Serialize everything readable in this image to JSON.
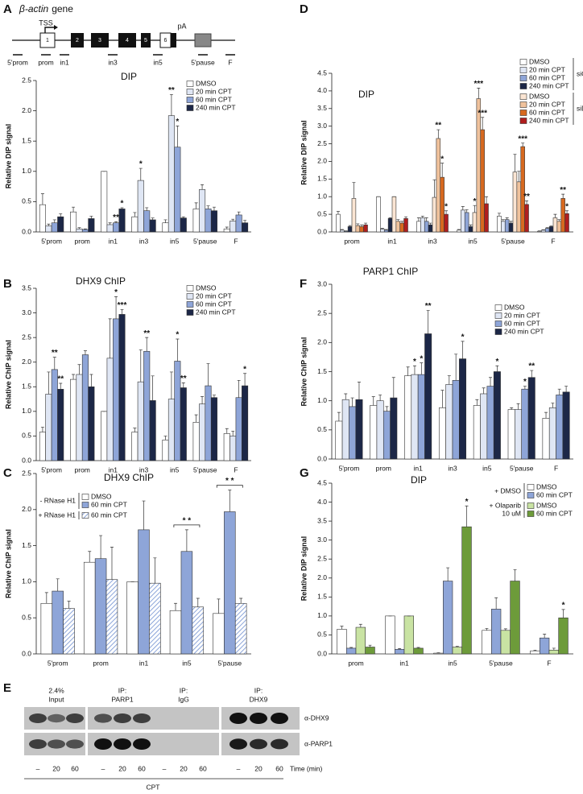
{
  "panels": [
    "A",
    "B",
    "C",
    "D",
    "E",
    "F",
    "G"
  ],
  "gene_diagram": {
    "gene": "β-actin",
    "label": "gene",
    "tss": "TSS",
    "pa": "pA",
    "exons": [
      "1",
      "2",
      "3",
      "4",
      "5",
      "6"
    ],
    "regions": [
      "5'prom",
      "prom",
      "in1",
      "in3",
      "in5",
      "5'pause",
      "F"
    ]
  },
  "chart_data": [
    {
      "type": "bar",
      "title": "DIP",
      "ylabel": "Relative DIP signal",
      "categories": [
        "5'prom",
        "prom",
        "in1",
        "in3",
        "in5",
        "5'pause",
        "F"
      ],
      "ylim": [
        0,
        2.5
      ],
      "yticks": [
        {
          "value": 0,
          "label": "0.0"
        },
        0.5,
        {
          "value": 1,
          "label": "1.0"
        },
        1.5,
        {
          "value": 2,
          "label": "2.0"
        },
        2.5
      ],
      "series": [
        {
          "name": "DMSO",
          "color": "#ffffff",
          "values": [
            0.45,
            0.33,
            1.0,
            0.25,
            0.15,
            0.38,
            0.05
          ],
          "errors": [
            0.18,
            0.08,
            0,
            0.07,
            0.05,
            0.1,
            0.03
          ]
        },
        {
          "name": "20 min CPT",
          "color": "#dfe6f4",
          "values": [
            0.1,
            0.05,
            0.12,
            0.85,
            1.92,
            0.7,
            0.18
          ],
          "errors": [
            0.03,
            0.02,
            0.03,
            0.2,
            0.35,
            0.08,
            0.03
          ],
          "significance": [
            null,
            null,
            null,
            "*",
            "**",
            null,
            null
          ]
        },
        {
          "name": "60 min CPT",
          "color": "#8ea5d8",
          "values": [
            0.15,
            0.04,
            0.15,
            0.35,
            1.4,
            0.38,
            0.28
          ],
          "errors": [
            0.05,
            0.01,
            0.02,
            0.05,
            0.35,
            0.05,
            0.05
          ],
          "significance": [
            null,
            null,
            "**",
            null,
            "*",
            null,
            null
          ]
        },
        {
          "name": "240 min CPT",
          "color": "#1c2747",
          "values": [
            0.25,
            0.22,
            0.38,
            0.2,
            0.23,
            0.35,
            0.15
          ],
          "errors": [
            0.05,
            0.04,
            0.02,
            0.03,
            0.02,
            0.06,
            0.04
          ],
          "significance": [
            null,
            null,
            "*",
            null,
            null,
            null,
            null
          ]
        }
      ]
    },
    {
      "type": "bar",
      "title": "DHX9 ChIP",
      "ylabel": "Relative ChIP signal",
      "categories": [
        "5'prom",
        "prom",
        "in1",
        "in3",
        "in5",
        "5'pause",
        "F"
      ],
      "ylim": [
        0,
        3.5
      ],
      "yticks": [
        {
          "value": 0,
          "label": "0.0"
        },
        0.5,
        {
          "value": 1,
          "label": "1.0"
        },
        1.5,
        {
          "value": 2,
          "label": "2.0"
        },
        2.5,
        {
          "value": 3,
          "label": "3.0"
        },
        3.5
      ],
      "series": [
        {
          "name": "DMSO",
          "color": "#ffffff",
          "values": [
            0.58,
            1.65,
            1.0,
            0.58,
            0.42,
            0.78,
            0.55
          ],
          "errors": [
            0.1,
            0.1,
            0,
            0.08,
            0.08,
            0.15,
            0.1
          ]
        },
        {
          "name": "20 min CPT",
          "color": "#dfe6f4",
          "values": [
            1.35,
            1.75,
            2.08,
            1.6,
            1.25,
            1.15,
            0.5
          ],
          "errors": [
            0.45,
            0.2,
            0.8,
            0.65,
            0.55,
            0.15,
            0.1
          ]
        },
        {
          "name": "60 min CPT",
          "color": "#8ea5d8",
          "values": [
            1.85,
            2.15,
            2.88,
            2.22,
            2.02,
            1.52,
            1.28
          ],
          "errors": [
            0.25,
            0.08,
            0.45,
            0.28,
            0.45,
            0.45,
            0.35
          ],
          "significance": [
            "**",
            null,
            "*",
            "**",
            "*",
            null,
            null
          ]
        },
        {
          "name": "240 min CPT",
          "color": "#1c2747",
          "values": [
            1.45,
            1.5,
            2.97,
            1.22,
            1.48,
            1.28,
            1.52
          ],
          "errors": [
            0.12,
            0.25,
            0.1,
            0.5,
            0.1,
            0.05,
            0.25
          ],
          "significance": [
            "**",
            null,
            "***",
            null,
            "**",
            null,
            "*"
          ]
        }
      ]
    },
    {
      "type": "bar",
      "title": "DHX9 ChIP",
      "ylabel": "Relative ChIP signal",
      "categories": [
        "5'prom",
        "prom",
        "in1",
        "in5",
        "5'pause"
      ],
      "ylim": [
        0,
        2.5
      ],
      "yticks": [
        {
          "value": 0,
          "label": "0.0"
        },
        0.5,
        {
          "value": 1,
          "label": "1.0"
        },
        1.5,
        {
          "value": 2,
          "label": "2.0"
        },
        2.5
      ],
      "brackets": [
        null,
        null,
        null,
        "* *",
        "* *"
      ],
      "series_groups": [
        {
          "label": [
            "- RNase H1"
          ],
          "series": [
            {
              "name": "DMSO",
              "color": "#ffffff",
              "values": [
                0.7,
                1.27,
                1.0,
                0.6,
                0.56
              ],
              "errors": [
                0.15,
                0.15,
                0,
                0.1,
                0.2
              ]
            },
            {
              "name": "60 min CPT",
              "color": "#8ea5d8",
              "values": [
                0.87,
                1.32,
                1.72,
                1.42,
                1.97
              ],
              "errors": [
                0.17,
                0.32,
                0.4,
                0.3,
                0.3
              ]
            }
          ]
        },
        {
          "label": [
            "+ RNase H1"
          ],
          "series": [
            {
              "name": "60 min CPT",
              "color": "#6f8fd0",
              "pattern": "hatch",
              "values": [
                0.63,
                1.03,
                0.98,
                0.65,
                0.7
              ],
              "errors": [
                0.1,
                0.45,
                0.35,
                0.12,
                0.07
              ]
            }
          ]
        }
      ]
    },
    {
      "type": "bar",
      "title": "DIP",
      "ylabel": "Relative DIP signal",
      "categories": [
        "prom",
        "in1",
        "in3",
        "in5",
        "5'pause",
        "F"
      ],
      "ylim": [
        0,
        4.5
      ],
      "yticks": [
        {
          "value": 0,
          "label": "0.0"
        },
        0.5,
        {
          "value": 1,
          "label": "1.0"
        },
        1.5,
        {
          "value": 2,
          "label": "2.0"
        },
        2.5,
        {
          "value": 3,
          "label": "3.0"
        },
        3.5,
        {
          "value": 4,
          "label": "4.0"
        },
        4.5
      ],
      "series_groups": [
        {
          "label": [
            "siCtrl"
          ],
          "series": [
            {
              "name": "DMSO",
              "color": "#ffffff",
              "values": [
                0.5,
                1.0,
                0.3,
                0.05,
                0.45,
                0.02
              ],
              "errors": [
                0.08,
                0,
                0.1,
                0.02,
                0.08,
                0.01
              ]
            },
            {
              "name": "20 min CPT",
              "color": "#dfe6f4",
              "values": [
                0.05,
                0.08,
                0.4,
                0.62,
                0.3,
                0.05
              ],
              "errors": [
                0.02,
                0.02,
                0.05,
                0.1,
                0.05,
                0.01
              ]
            },
            {
              "name": "60 min CPT",
              "color": "#8ea5d8",
              "values": [
                0.02,
                0.05,
                0.3,
                0.55,
                0.35,
                0.1
              ],
              "errors": [
                0.01,
                0.02,
                0.1,
                0.08,
                0.05,
                0.02
              ]
            },
            {
              "name": "240 min CPT",
              "color": "#1c2747",
              "values": [
                0.15,
                0.38,
                0.2,
                0.15,
                0.25,
                0.15
              ],
              "errors": [
                0.03,
                0.02,
                0.05,
                0.05,
                0.05,
                0.02
              ]
            }
          ]
        },
        {
          "label": [
            "siDHX9"
          ],
          "series": [
            {
              "name": "DMSO",
              "color": "#fbe5d3",
              "values": [
                0.95,
                1.0,
                0.98,
                0.55,
                1.7,
                0.4
              ],
              "errors": [
                0.45,
                0,
                0.5,
                0.2,
                0.5,
                0.1
              ],
              "significance": [
                null,
                null,
                null,
                "*",
                null,
                null
              ]
            },
            {
              "name": "20 min CPT",
              "color": "#f0c29c",
              "values": [
                0.18,
                0.3,
                2.65,
                3.78,
                1.42,
                0.3
              ],
              "errors": [
                0.05,
                0.05,
                0.25,
                0.3,
                0.3,
                0.05
              ],
              "significance": [
                null,
                null,
                "**",
                "***",
                null,
                null
              ]
            },
            {
              "name": "60 min CPT",
              "color": "#d7691f",
              "values": [
                0.15,
                0.25,
                1.55,
                2.9,
                2.42,
                0.95
              ],
              "errors": [
                0.05,
                0.05,
                0.4,
                0.35,
                0.1,
                0.12
              ],
              "significance": [
                null,
                null,
                "*",
                "***",
                "***",
                "**"
              ]
            },
            {
              "name": "240 min CPT",
              "color": "#b01e1e",
              "values": [
                0.2,
                0.38,
                0.5,
                0.8,
                0.78,
                0.52
              ],
              "errors": [
                0.05,
                0.05,
                0.1,
                0.2,
                0.1,
                0.08
              ],
              "significance": [
                null,
                null,
                "*",
                null,
                "**",
                "*"
              ]
            }
          ]
        }
      ]
    },
    {
      "type": "bar",
      "title": "PARP1 ChIP",
      "ylabel": "Relative ChIP signal",
      "categories": [
        "5'prom",
        "prom",
        "in1",
        "in3",
        "in5",
        "5'pause",
        "F"
      ],
      "ylim": [
        0,
        3
      ],
      "yticks": [
        {
          "value": 0,
          "label": "0.0"
        },
        0.5,
        {
          "value": 1,
          "label": "1.0"
        },
        1.5,
        {
          "value": 2,
          "label": "2.0"
        },
        2.5,
        {
          "value": 3,
          "label": "3.0"
        }
      ],
      "series": [
        {
          "name": "DMSO",
          "color": "#ffffff",
          "values": [
            0.65,
            0.92,
            1.43,
            0.88,
            0.92,
            0.85,
            0.7
          ],
          "errors": [
            0.15,
            0.15,
            0.15,
            0.3,
            0.1,
            0.03,
            0.1
          ]
        },
        {
          "name": "20 min CPT",
          "color": "#dfe6f4",
          "values": [
            1.02,
            1.0,
            1.45,
            1.28,
            1.12,
            0.85,
            0.88
          ],
          "errors": [
            0.1,
            0.1,
            0.15,
            0.15,
            0.1,
            0.1,
            0.08
          ],
          "significance": [
            null,
            null,
            "*",
            null,
            null,
            null,
            null
          ]
        },
        {
          "name": "60 min CPT",
          "color": "#8ea5d8",
          "values": [
            0.9,
            0.82,
            1.45,
            1.35,
            1.25,
            1.2,
            1.1
          ],
          "errors": [
            0.15,
            0.08,
            0.2,
            0.45,
            0.15,
            0.05,
            0.1
          ],
          "significance": [
            null,
            null,
            "*",
            null,
            null,
            "*",
            null
          ]
        },
        {
          "name": "240 min CPT",
          "color": "#1c2747",
          "values": [
            1.02,
            1.05,
            2.15,
            1.72,
            1.5,
            1.4,
            1.15
          ],
          "errors": [
            0.3,
            0.35,
            0.4,
            0.3,
            0.1,
            0.12,
            0.1
          ],
          "significance": [
            null,
            null,
            "**",
            "*",
            "*",
            "**",
            null
          ]
        }
      ]
    },
    {
      "type": "bar",
      "title": "DIP",
      "ylabel": "Relative DIP signal",
      "categories": [
        "prom",
        "in1",
        "in5",
        "5'pause",
        "F"
      ],
      "ylim": [
        0,
        4.5
      ],
      "yticks": [
        {
          "value": 0,
          "label": "0.0"
        },
        0.5,
        {
          "value": 1,
          "label": "1.0"
        },
        1.5,
        {
          "value": 2,
          "label": "2.0"
        },
        2.5,
        {
          "value": 3,
          "label": "3.0"
        },
        3.5,
        {
          "value": 4,
          "label": "4.0"
        },
        4.5
      ],
      "series_groups": [
        {
          "label": [
            "+ DMSO"
          ],
          "series": [
            {
              "name": "DMSO",
              "color": "#ffffff",
              "values": [
                0.65,
                1.0,
                0.02,
                0.62,
                0.08
              ],
              "errors": [
                0.08,
                0,
                0.01,
                0.05,
                0.02
              ]
            },
            {
              "name": "60 min CPT",
              "color": "#8ea5d8",
              "values": [
                0.15,
                0.12,
                1.92,
                1.18,
                0.42
              ],
              "errors": [
                0.02,
                0.02,
                0.35,
                0.3,
                0.1
              ]
            }
          ]
        },
        {
          "label": [
            "+ Olaparib",
            "10 uM"
          ],
          "series": [
            {
              "name": "DMSO",
              "color": "#c9e3a3",
              "values": [
                0.7,
                1.0,
                0.18,
                0.62,
                0.1
              ],
              "errors": [
                0.08,
                0,
                0.02,
                0.04,
                0.05
              ]
            },
            {
              "name": "60 min CPT",
              "color": "#6d9b3a",
              "values": [
                0.18,
                0.15,
                3.35,
                1.92,
                0.95
              ],
              "errors": [
                0.05,
                0.02,
                0.55,
                0.3,
                0.22
              ],
              "significance": [
                null,
                null,
                "*",
                null,
                "*"
              ]
            }
          ]
        }
      ]
    }
  ],
  "blot": {
    "lane_groups": [
      [
        "2.4%",
        "Input"
      ],
      [
        "IP:",
        "PARP1"
      ],
      [
        "IP:",
        "IgG"
      ],
      [
        "IP:",
        "DHX9"
      ]
    ],
    "antibodies": [
      "α-DHX9",
      "α-PARP1"
    ],
    "lanes": [
      "–",
      "20",
      "60",
      "–",
      "20",
      "60",
      "–",
      "20",
      "60",
      "–",
      "20",
      "60"
    ],
    "time_label": "Time (min)",
    "treatment": "CPT"
  }
}
